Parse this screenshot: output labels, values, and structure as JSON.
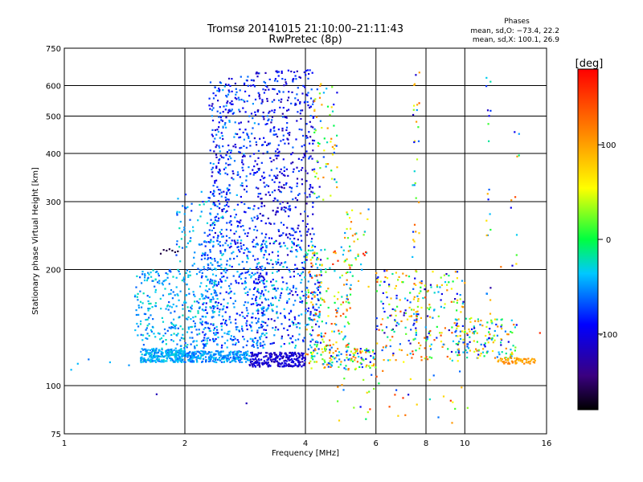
{
  "chart_data": {
    "type": "scatter",
    "title": "Tromsø 20141015 21:10:00–21:11:43",
    "subtitle": "RwPretec (8p)",
    "xlabel": "Frequency [MHz]",
    "ylabel": "Stationary phase Virtual Height [km]",
    "x_scale": "log",
    "y_scale": "log",
    "xlim": [
      1,
      16
    ],
    "ylim": [
      75,
      750
    ],
    "x_ticks": [
      1,
      2,
      4,
      6,
      8,
      10,
      16
    ],
    "x_tick_labels": [
      "1",
      "2",
      "4",
      "6",
      "8",
      "10",
      "16"
    ],
    "y_ticks": [
      75,
      100,
      200,
      300,
      400,
      500,
      600,
      750
    ],
    "y_tick_labels": [
      "75",
      "100",
      "200",
      "300",
      "400",
      "500",
      "600",
      "750"
    ],
    "grid": true,
    "phase_stats": {
      "title": "Phases",
      "line_o": "mean, sd,O: −73.4, 22.2",
      "line_x": "mean, sd,X: 100.1, 26.9"
    },
    "colorbar": {
      "label": "[deg]",
      "range": [
        -180,
        180
      ],
      "ticks": [
        100,
        0,
        -100
      ],
      "tick_labels": [
        "100",
        "0",
        "-100"
      ]
    },
    "clusters": [
      {
        "x": [
          1.55,
          2.0
        ],
        "y": [
          115,
          125
        ],
        "phase": [
          -60,
          -25
        ],
        "n": 260
      },
      {
        "x": [
          2.0,
          2.9
        ],
        "y": [
          115,
          123
        ],
        "phase": [
          -70,
          -30
        ],
        "n": 260
      },
      {
        "x": [
          2.9,
          4.0
        ],
        "y": [
          112,
          122
        ],
        "phase": [
          -130,
          -90
        ],
        "n": 240
      },
      {
        "x": [
          4.0,
          6.0
        ],
        "y": [
          110,
          125
        ],
        "phase": [
          -100,
          140
        ],
        "n": 140
      },
      {
        "x": [
          1.5,
          2.4
        ],
        "y": [
          125,
          200
        ],
        "phase": [
          -70,
          -20
        ],
        "n": 320
      },
      {
        "x": [
          2.2,
          3.2
        ],
        "y": [
          125,
          240
        ],
        "phase": [
          -100,
          -30
        ],
        "n": 380
      },
      {
        "x": [
          3.0,
          4.4
        ],
        "y": [
          125,
          240
        ],
        "phase": [
          -120,
          -20
        ],
        "n": 360
      },
      {
        "x": [
          4.0,
          5.2
        ],
        "y": [
          125,
          230
        ],
        "phase": [
          -60,
          160
        ],
        "n": 160
      },
      {
        "x": [
          2.3,
          3.0
        ],
        "y": [
          230,
          640
        ],
        "phase": [
          -120,
          -40
        ],
        "n": 360
      },
      {
        "x": [
          3.0,
          4.2
        ],
        "y": [
          240,
          660
        ],
        "phase": [
          -130,
          -60
        ],
        "n": 420
      },
      {
        "x": [
          4.2,
          4.8
        ],
        "y": [
          300,
          620
        ],
        "phase": [
          -110,
          120
        ],
        "n": 70
      },
      {
        "x": [
          1.9,
          2.5
        ],
        "y": [
          200,
          320
        ],
        "phase": [
          -80,
          -20
        ],
        "n": 90
      },
      {
        "x": [
          6.0,
          10.0
        ],
        "y": [
          115,
          200
        ],
        "phase": [
          -130,
          150
        ],
        "n": 260
      },
      {
        "x": [
          9.5,
          13.5
        ],
        "y": [
          118,
          150
        ],
        "phase": [
          -110,
          120
        ],
        "n": 140
      },
      {
        "x": [
          12.0,
          15.0
        ],
        "y": [
          114,
          118
        ],
        "phase": [
          80,
          120
        ],
        "n": 60
      },
      {
        "x": [
          5.0,
          5.8
        ],
        "y": [
          180,
          290
        ],
        "phase": [
          -60,
          160
        ],
        "n": 40
      },
      {
        "x": [
          7.4,
          7.7
        ],
        "y": [
          130,
          660
        ],
        "phase": [
          -120,
          150
        ],
        "n": 40
      },
      {
        "x": [
          11.3,
          11.6
        ],
        "y": [
          120,
          660
        ],
        "phase": [
          -130,
          100
        ],
        "n": 25
      },
      {
        "x": [
          4.8,
          10.5
        ],
        "y": [
          80,
          110
        ],
        "phase": [
          -120,
          160
        ],
        "n": 40
      },
      {
        "x": [
          12.3,
          13.7
        ],
        "y": [
          180,
          480
        ],
        "phase": [
          -120,
          150
        ],
        "n": 12
      }
    ],
    "points": [
      {
        "x": 1.77,
        "y": 225,
        "phase": -160
      },
      {
        "x": 1.8,
        "y": 224,
        "phase": -160
      },
      {
        "x": 1.83,
        "y": 226,
        "phase": -160
      },
      {
        "x": 1.86,
        "y": 224,
        "phase": -165
      },
      {
        "x": 1.89,
        "y": 222,
        "phase": -160
      },
      {
        "x": 1.92,
        "y": 223,
        "phase": -165
      },
      {
        "x": 1.74,
        "y": 220,
        "phase": -160
      },
      {
        "x": 5.58,
        "y": 220,
        "phase": 160
      },
      {
        "x": 5.62,
        "y": 218,
        "phase": 165
      },
      {
        "x": 5.66,
        "y": 222,
        "phase": 160
      },
      {
        "x": 1.04,
        "y": 110,
        "phase": -40
      },
      {
        "x": 1.08,
        "y": 114,
        "phase": -40
      },
      {
        "x": 1.15,
        "y": 117,
        "phase": -60
      },
      {
        "x": 1.3,
        "y": 115,
        "phase": -40
      },
      {
        "x": 1.45,
        "y": 113,
        "phase": -50
      },
      {
        "x": 1.7,
        "y": 95,
        "phase": -120
      },
      {
        "x": 2.85,
        "y": 90,
        "phase": -120
      },
      {
        "x": 15.4,
        "y": 137,
        "phase": 160
      }
    ]
  }
}
